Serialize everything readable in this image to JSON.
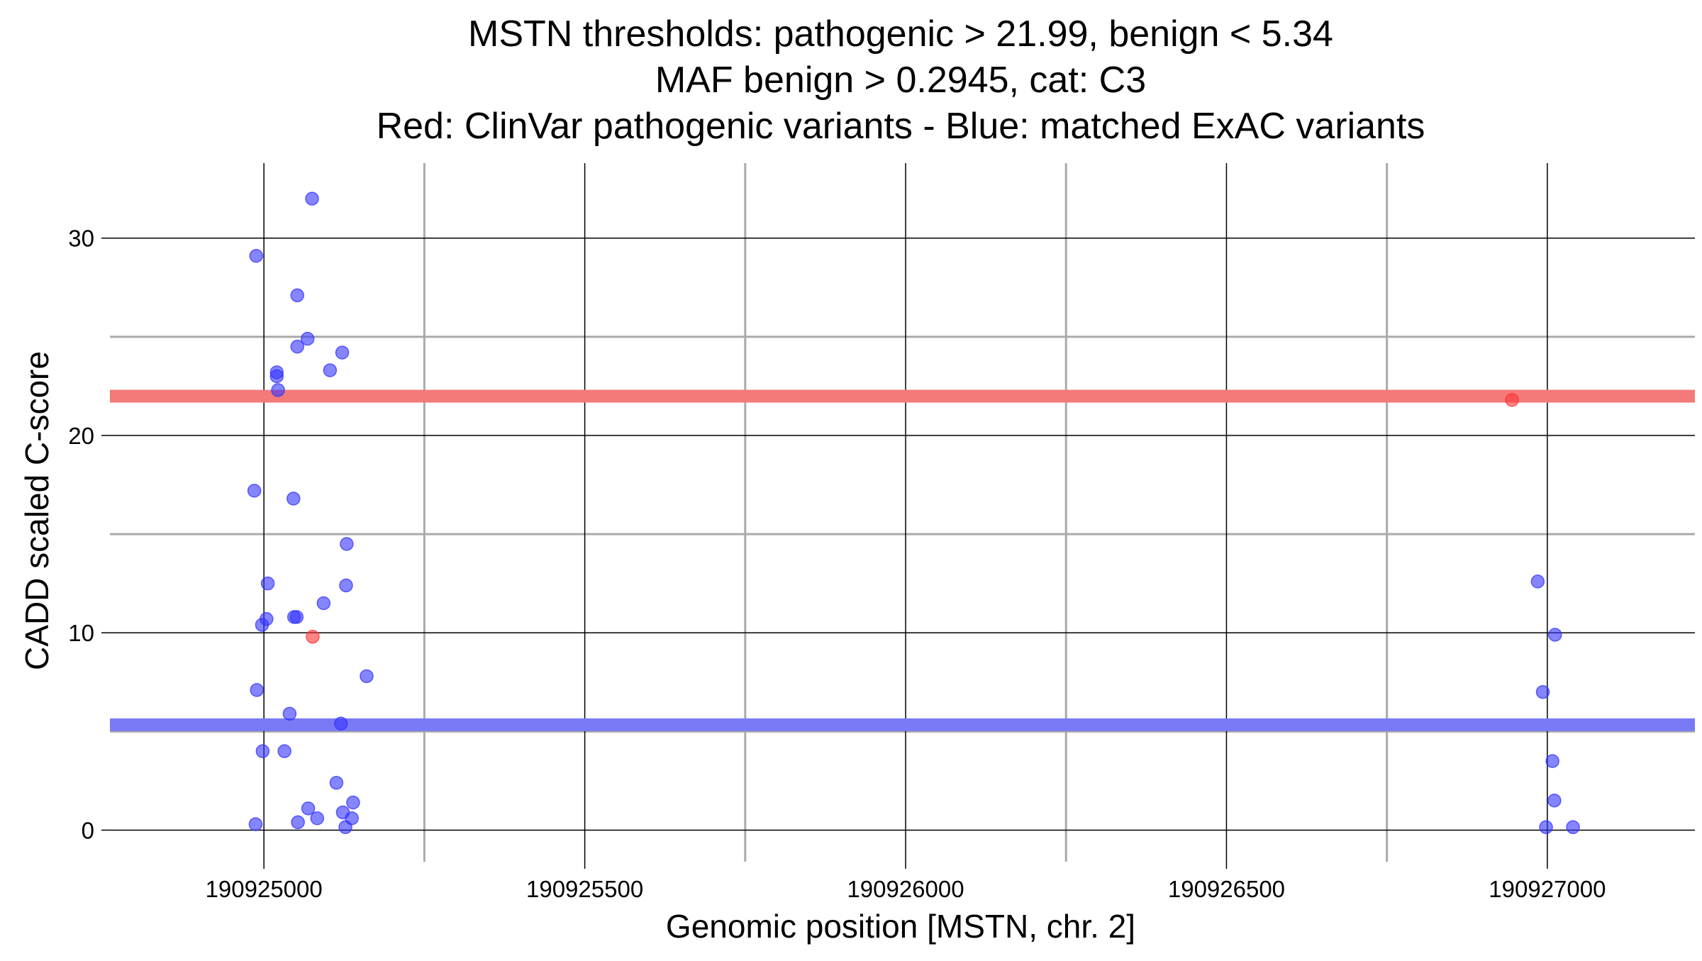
{
  "chart_data": {
    "type": "scatter",
    "title_lines": [
      "MSTN thresholds: pathogenic > 21.99, benign < 5.34",
      "MAF benign > 0.2945, cat: C3",
      "Red: ClinVar pathogenic variants - Blue: matched ExAC variants"
    ],
    "xlabel": "Genomic position [MSTN, chr. 2]",
    "ylabel": "CADD scaled C-score",
    "xlim": [
      190924760,
      190927230
    ],
    "ylim": [
      -1.6,
      33.8
    ],
    "x_ticks": [
      {
        "value": 190925000,
        "label": "190925000"
      },
      {
        "value": 190925500,
        "label": "190925500"
      },
      {
        "value": 190926000,
        "label": "190926000"
      },
      {
        "value": 190926500,
        "label": "190926500"
      },
      {
        "value": 190927000,
        "label": "190927000"
      }
    ],
    "x_minor_grid": [
      190925250,
      190925750,
      190926250,
      190926750
    ],
    "y_ticks": [
      {
        "value": 0,
        "label": "0"
      },
      {
        "value": 10,
        "label": "10"
      },
      {
        "value": 20,
        "label": "20"
      },
      {
        "value": 30,
        "label": "30"
      }
    ],
    "y_minor_grid": [
      5,
      15,
      25
    ],
    "grid": true,
    "thresholds": [
      {
        "name": "pathogenic",
        "value": 21.99,
        "color": "#f47a7a"
      },
      {
        "name": "benign",
        "value": 5.34,
        "color": "#7a7af7"
      }
    ],
    "series": [
      {
        "color": "#3333ff",
        "points": [
          [
            190925075,
            32.0
          ],
          [
            190924988,
            29.1
          ],
          [
            190925052,
            27.1
          ],
          [
            190925068,
            24.9
          ],
          [
            190925052,
            24.5
          ],
          [
            190925122,
            24.2
          ],
          [
            190925103,
            23.3
          ],
          [
            190925020,
            23.2
          ],
          [
            190925020,
            23.0
          ],
          [
            190925022,
            22.3
          ],
          [
            190924985,
            17.2
          ],
          [
            190925046,
            16.8
          ],
          [
            190925129,
            14.5
          ],
          [
            190925006,
            12.5
          ],
          [
            190925128,
            12.4
          ],
          [
            190925093,
            11.5
          ],
          [
            190925047,
            10.8
          ],
          [
            190925051,
            10.8
          ],
          [
            190925004,
            10.7
          ],
          [
            190924997,
            10.4
          ],
          [
            190925160,
            7.8
          ],
          [
            190924989,
            7.1
          ],
          [
            190925040,
            5.9
          ],
          [
            190925120,
            5.4
          ],
          [
            190924998,
            4.0
          ],
          [
            190925032,
            4.0
          ],
          [
            190925113,
            2.4
          ],
          [
            190925139,
            1.4
          ],
          [
            190925069,
            1.1
          ],
          [
            190925123,
            0.9
          ],
          [
            190925083,
            0.6
          ],
          [
            190925137,
            0.6
          ],
          [
            190925053,
            0.4
          ],
          [
            190924987,
            0.3
          ],
          [
            190925127,
            0.15
          ],
          [
            190926985,
            12.6
          ],
          [
            190926993,
            7.0
          ],
          [
            190927012,
            9.9
          ],
          [
            190927008,
            3.5
          ],
          [
            190927011,
            1.5
          ],
          [
            190926998,
            0.15
          ],
          [
            190927040,
            0.15
          ]
        ]
      },
      {
        "color": "#ff3333",
        "points": [
          [
            190925076,
            9.8
          ],
          [
            190926945,
            21.8
          ]
        ]
      }
    ]
  }
}
